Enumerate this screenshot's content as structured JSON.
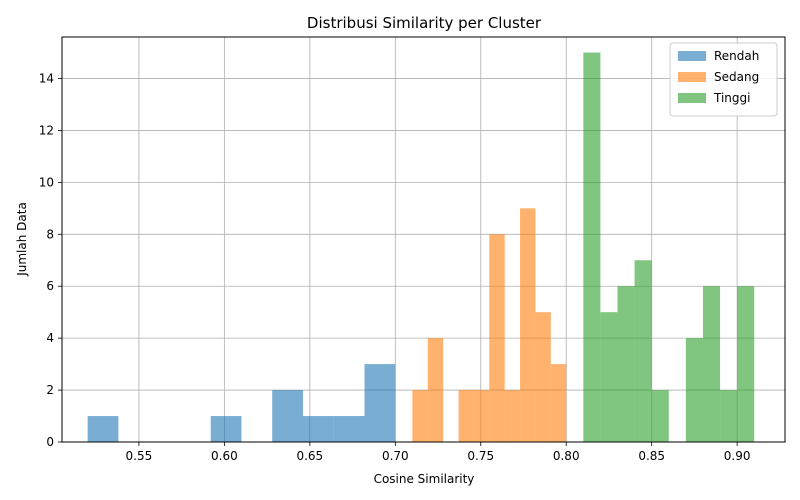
{
  "chart_data": {
    "type": "histogram",
    "title": "Distribusi Similarity per Cluster",
    "xlabel": "Cosine Similarity",
    "ylabel": "Jumlah Data",
    "xlim": [
      0.505,
      0.928
    ],
    "ylim": [
      0,
      15.6
    ],
    "xticks": [
      0.55,
      0.6,
      0.65,
      0.7,
      0.75,
      0.8,
      0.85,
      0.9
    ],
    "xtick_labels": [
      "0.55",
      "0.60",
      "0.65",
      "0.70",
      "0.75",
      "0.80",
      "0.85",
      "0.90"
    ],
    "yticks": [
      0,
      2,
      4,
      6,
      8,
      10,
      12,
      14
    ],
    "ytick_labels": [
      "0",
      "2",
      "4",
      "6",
      "8",
      "10",
      "12",
      "14"
    ],
    "grid": true,
    "legend_position": "top-right",
    "series": [
      {
        "name": "Rendah",
        "color": "#1f77b4",
        "opacity": 0.6,
        "bins": [
          {
            "x0": 0.52,
            "x1": 0.538,
            "count": 1
          },
          {
            "x0": 0.538,
            "x1": 0.556,
            "count": 0
          },
          {
            "x0": 0.556,
            "x1": 0.574,
            "count": 0
          },
          {
            "x0": 0.574,
            "x1": 0.592,
            "count": 0
          },
          {
            "x0": 0.592,
            "x1": 0.61,
            "count": 1
          },
          {
            "x0": 0.61,
            "x1": 0.628,
            "count": 0
          },
          {
            "x0": 0.628,
            "x1": 0.646,
            "count": 2
          },
          {
            "x0": 0.646,
            "x1": 0.664,
            "count": 1
          },
          {
            "x0": 0.664,
            "x1": 0.682,
            "count": 1
          },
          {
            "x0": 0.682,
            "x1": 0.7,
            "count": 3
          }
        ]
      },
      {
        "name": "Sedang",
        "color": "#ff7f0e",
        "opacity": 0.6,
        "bins": [
          {
            "x0": 0.71,
            "x1": 0.719,
            "count": 2
          },
          {
            "x0": 0.719,
            "x1": 0.728,
            "count": 4
          },
          {
            "x0": 0.728,
            "x1": 0.737,
            "count": 0
          },
          {
            "x0": 0.737,
            "x1": 0.746,
            "count": 2
          },
          {
            "x0": 0.746,
            "x1": 0.755,
            "count": 2
          },
          {
            "x0": 0.755,
            "x1": 0.764,
            "count": 8
          },
          {
            "x0": 0.764,
            "x1": 0.773,
            "count": 2
          },
          {
            "x0": 0.773,
            "x1": 0.782,
            "count": 9
          },
          {
            "x0": 0.782,
            "x1": 0.791,
            "count": 5
          },
          {
            "x0": 0.791,
            "x1": 0.8,
            "count": 3
          }
        ]
      },
      {
        "name": "Tinggi",
        "color": "#2ca02c",
        "opacity": 0.6,
        "bins": [
          {
            "x0": 0.81,
            "x1": 0.82,
            "count": 15
          },
          {
            "x0": 0.82,
            "x1": 0.83,
            "count": 5
          },
          {
            "x0": 0.83,
            "x1": 0.84,
            "count": 6
          },
          {
            "x0": 0.84,
            "x1": 0.85,
            "count": 7
          },
          {
            "x0": 0.85,
            "x1": 0.86,
            "count": 2
          },
          {
            "x0": 0.86,
            "x1": 0.87,
            "count": 0
          },
          {
            "x0": 0.87,
            "x1": 0.88,
            "count": 4
          },
          {
            "x0": 0.88,
            "x1": 0.89,
            "count": 6
          },
          {
            "x0": 0.89,
            "x1": 0.9,
            "count": 2
          },
          {
            "x0": 0.9,
            "x1": 0.91,
            "count": 6
          }
        ]
      }
    ]
  }
}
